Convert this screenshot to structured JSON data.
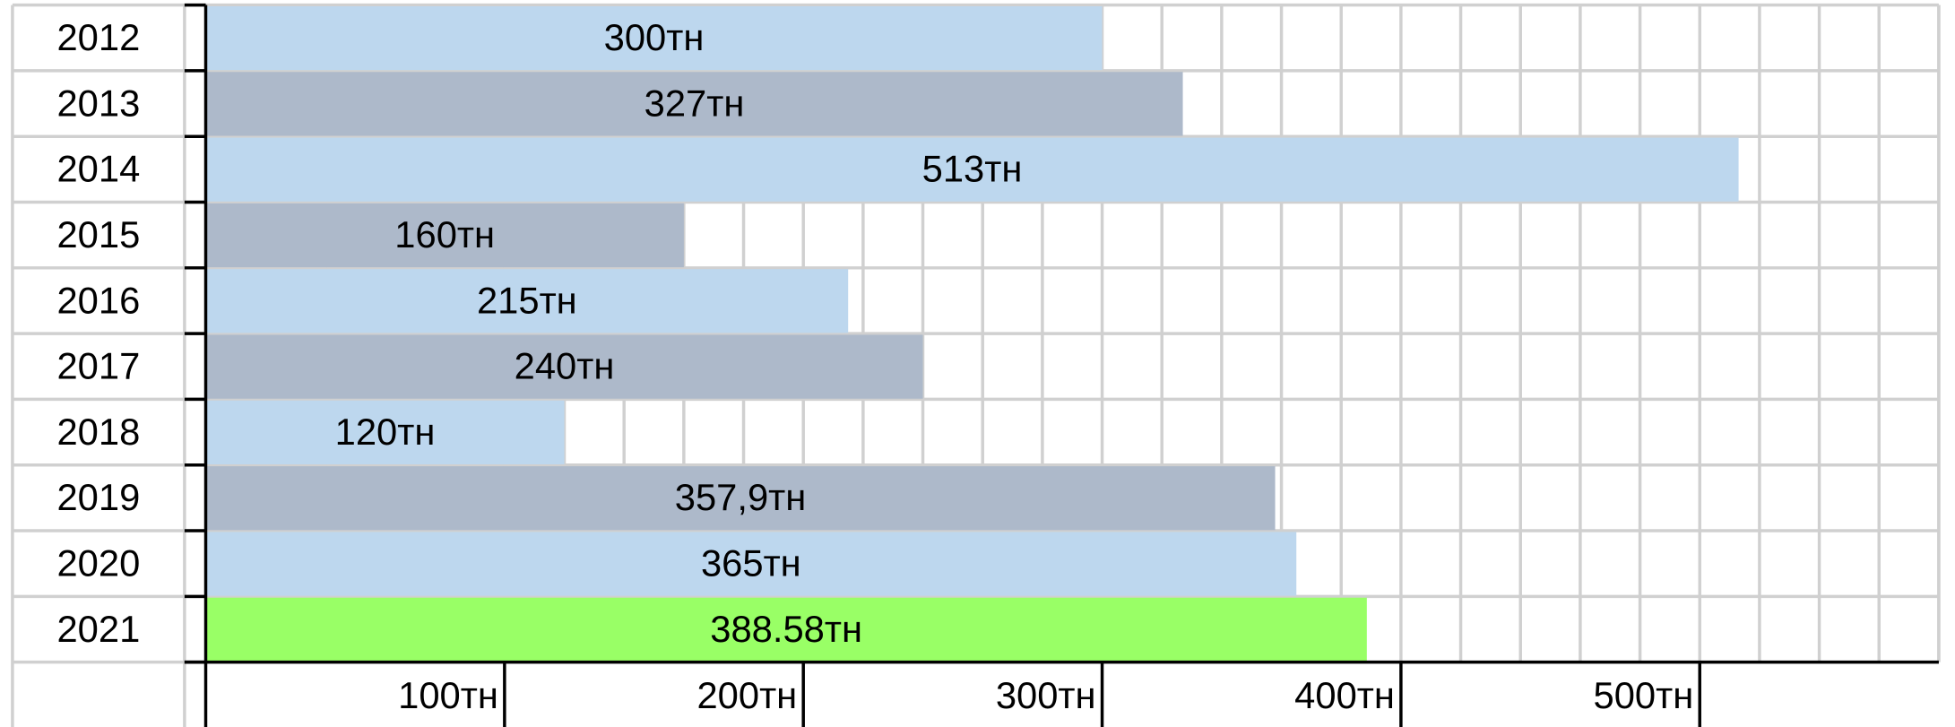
{
  "chart_data": {
    "type": "hbar",
    "categories": [
      "2012",
      "2013",
      "2014",
      "2015",
      "2016",
      "2017",
      "2018",
      "2019",
      "2020",
      "2021"
    ],
    "values": [
      300,
      327,
      513,
      160,
      215,
      240,
      120,
      357.9,
      365,
      388.58
    ],
    "value_labels": [
      "300тн",
      "327тн",
      "513тн",
      "160тн",
      "215тн",
      "240тн",
      "120тн",
      "357,9тн",
      "365тн",
      "388.58тн"
    ],
    "colors": [
      "#bdd7ee",
      "#adb9ca",
      "#bdd7ee",
      "#adb9ca",
      "#bdd7ee",
      "#adb9ca",
      "#bdd7ee",
      "#adb9ca",
      "#bdd7ee",
      "#99ff66"
    ],
    "xlim": [
      0,
      580
    ],
    "xticks": [
      {
        "value": 100,
        "label": "100тн"
      },
      {
        "value": 200,
        "label": "200тн"
      },
      {
        "value": 300,
        "label": "300тн"
      },
      {
        "value": 400,
        "label": "400тн"
      },
      {
        "value": 500,
        "label": "500тн"
      }
    ],
    "xminor_ticks": [
      20,
      40,
      60,
      80,
      120,
      140,
      160,
      180,
      220,
      240,
      260,
      280,
      320,
      340,
      360,
      380,
      420,
      440,
      460,
      480,
      520,
      540,
      560,
      580
    ],
    "grid": true
  }
}
